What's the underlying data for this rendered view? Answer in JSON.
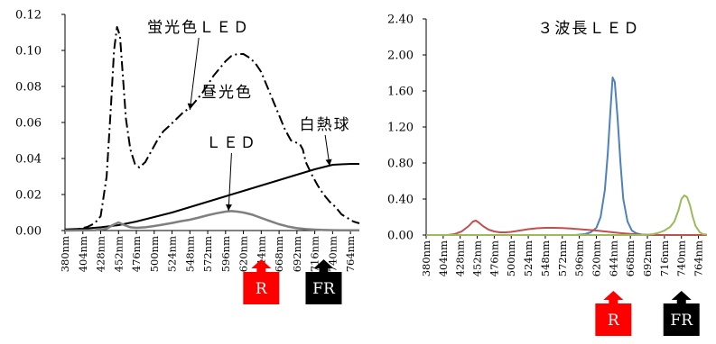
{
  "chart_data": [
    {
      "type": "line",
      "title": "",
      "xlabel": "",
      "ylabel": "",
      "x_ticks": [
        "380nm",
        "404nm",
        "428nm",
        "452nm",
        "476nm",
        "500nm",
        "524nm",
        "548nm",
        "572nm",
        "596nm",
        "620nm",
        "644nm",
        "668nm",
        "692nm",
        "716nm",
        "740nm",
        "764nm"
      ],
      "xlim": [
        380,
        776
      ],
      "ylim": [
        0,
        0.12
      ],
      "y_ticks": [
        "0.00",
        "0.02",
        "0.04",
        "0.06",
        "0.08",
        "0.10",
        "0.12"
      ],
      "grid": false,
      "legend": "none",
      "series": [
        {
          "name": "蛍光色ＬＥＤ",
          "color": "#000000",
          "style": "dashdot",
          "x": [
            380,
            400,
            410,
            420,
            428,
            436,
            442,
            446,
            450,
            454,
            458,
            462,
            468,
            474,
            480,
            488,
            496,
            504,
            512,
            520,
            530,
            540,
            548,
            556,
            564,
            572,
            580,
            588,
            596,
            604,
            612,
            620,
            628,
            636,
            644,
            652,
            660,
            668,
            676,
            684,
            690,
            696,
            700,
            704,
            712,
            720,
            728,
            736,
            744,
            752,
            760,
            768,
            776
          ],
          "y": [
            0.0,
            0.001,
            0.002,
            0.004,
            0.008,
            0.03,
            0.07,
            0.1,
            0.113,
            0.108,
            0.085,
            0.062,
            0.045,
            0.037,
            0.035,
            0.038,
            0.044,
            0.05,
            0.055,
            0.058,
            0.062,
            0.066,
            0.068,
            0.072,
            0.076,
            0.081,
            0.086,
            0.09,
            0.094,
            0.097,
            0.098,
            0.098,
            0.096,
            0.093,
            0.088,
            0.08,
            0.072,
            0.064,
            0.056,
            0.05,
            0.049,
            0.048,
            0.045,
            0.038,
            0.031,
            0.025,
            0.02,
            0.016,
            0.013,
            0.009,
            0.007,
            0.005,
            0.004
          ]
        },
        {
          "name": "白熱球",
          "color": "#000000",
          "style": "solid",
          "x": [
            380,
            404,
            428,
            452,
            476,
            500,
            524,
            548,
            572,
            596,
            620,
            644,
            668,
            692,
            716,
            740,
            764,
            776
          ],
          "y": [
            0.0006,
            0.001,
            0.0018,
            0.003,
            0.005,
            0.0075,
            0.01,
            0.013,
            0.016,
            0.019,
            0.022,
            0.025,
            0.028,
            0.031,
            0.034,
            0.0365,
            0.037,
            0.037
          ]
        },
        {
          "name": "昼光色ＬＥＤ",
          "color": "#7f7f7f",
          "style": "solid",
          "x": [
            380,
            420,
            436,
            444,
            452,
            460,
            468,
            476,
            488,
            500,
            512,
            524,
            536,
            548,
            560,
            572,
            584,
            596,
            604,
            612,
            620,
            632,
            644,
            656,
            668,
            680,
            692,
            704,
            716,
            728,
            740,
            752,
            764,
            776
          ],
          "y": [
            0.0,
            0.0002,
            0.001,
            0.003,
            0.0045,
            0.003,
            0.0018,
            0.0015,
            0.0018,
            0.0025,
            0.0033,
            0.0042,
            0.0052,
            0.006,
            0.0072,
            0.0085,
            0.0096,
            0.0105,
            0.0108,
            0.0105,
            0.01,
            0.0088,
            0.007,
            0.0052,
            0.0035,
            0.0022,
            0.0013,
            0.0008,
            0.0005,
            0.0003,
            0.0002,
            0.0001,
            0.0001,
            0.0001
          ]
        }
      ],
      "annotations": [
        {
          "text": "蛍光色ＬＥＤ",
          "x": 560,
          "y": 0.11,
          "arrow_to": [
            548,
            0.067
          ]
        },
        {
          "text": "白熱球",
          "x": 730,
          "y": 0.056,
          "arrow_to": [
            736,
            0.036
          ]
        },
        {
          "text": "昼光色",
          "x": 598,
          "y": 0.074,
          "arrow_to": null
        },
        {
          "text": "ＬＥＤ",
          "x": 604,
          "y": 0.046,
          "arrow_to": [
            600,
            0.011
          ]
        }
      ]
    },
    {
      "type": "line",
      "title": "",
      "xlabel": "",
      "ylabel": "",
      "x_ticks": [
        "380nm",
        "404nm",
        "428nm",
        "452nm",
        "476nm",
        "500nm",
        "524nm",
        "548nm",
        "572nm",
        "596nm",
        "620nm",
        "644nm",
        "668nm",
        "692nm",
        "716nm",
        "740nm",
        "764nm"
      ],
      "xlim": [
        380,
        776
      ],
      "ylim": [
        0,
        2.4
      ],
      "y_ticks": [
        "0.00",
        "0.40",
        "0.80",
        "1.20",
        "1.60",
        "2.00",
        "2.40"
      ],
      "grid": false,
      "legend": "none",
      "series": [
        {
          "name": "Blue",
          "color": "#4f81bd",
          "style": "solid",
          "x": [
            380,
            590,
            604,
            612,
            620,
            626,
            632,
            636,
            640,
            643,
            646,
            650,
            654,
            658,
            664,
            670,
            676,
            684,
            700,
            776
          ],
          "y": [
            0,
            0,
            0.01,
            0.03,
            0.08,
            0.2,
            0.5,
            0.9,
            1.4,
            1.75,
            1.7,
            1.3,
            0.8,
            0.4,
            0.15,
            0.05,
            0.02,
            0.005,
            0,
            0
          ],
          "label": ""
        },
        {
          "name": "Red",
          "color": "#c0504d",
          "style": "solid",
          "x": [
            380,
            410,
            420,
            430,
            440,
            446,
            450,
            454,
            460,
            468,
            476,
            484,
            492,
            500,
            512,
            524,
            536,
            548,
            560,
            572,
            584,
            596,
            608,
            620,
            632,
            644,
            656,
            668,
            680,
            690,
            700,
            776
          ],
          "y": [
            0,
            0,
            0.01,
            0.04,
            0.1,
            0.15,
            0.16,
            0.14,
            0.1,
            0.06,
            0.04,
            0.03,
            0.03,
            0.035,
            0.05,
            0.065,
            0.075,
            0.08,
            0.08,
            0.078,
            0.072,
            0.065,
            0.058,
            0.05,
            0.04,
            0.03,
            0.02,
            0.012,
            0.006,
            0.003,
            0.001,
            0
          ],
          "label": ""
        },
        {
          "name": "Green",
          "color": "#9bbb59",
          "style": "solid",
          "x": [
            380,
            680,
            690,
            700,
            708,
            716,
            724,
            730,
            736,
            740,
            744,
            748,
            752,
            756,
            760,
            766,
            770,
            776
          ],
          "y": [
            0,
            0,
            0.003,
            0.01,
            0.025,
            0.05,
            0.09,
            0.15,
            0.28,
            0.4,
            0.44,
            0.42,
            0.33,
            0.2,
            0.1,
            0.03,
            0.01,
            0.005
          ],
          "label": ""
        }
      ],
      "annotations": [
        {
          "text": "３波長ＬＥＤ"
        }
      ]
    }
  ],
  "markers": [
    {
      "text": "R",
      "color": "#ff0000",
      "panel": 0,
      "wavelength": 644
    },
    {
      "text": "FR",
      "color": "#000000",
      "panel": 0,
      "wavelength": 728
    },
    {
      "text": "R",
      "color": "#ff0000",
      "panel": 1,
      "wavelength": 644
    },
    {
      "text": "FR",
      "color": "#000000",
      "panel": 1,
      "wavelength": 740
    }
  ]
}
